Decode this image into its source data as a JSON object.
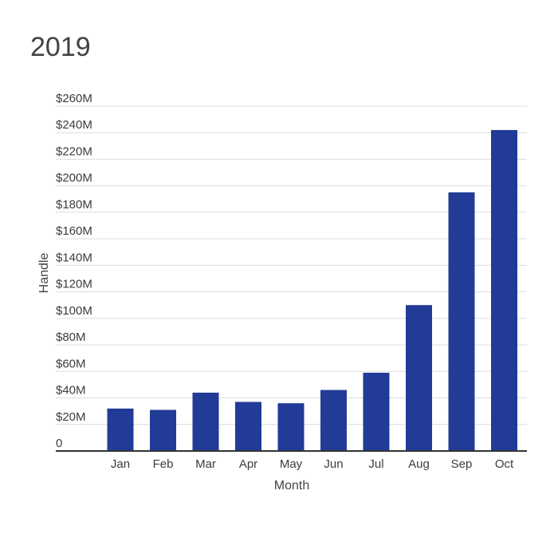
{
  "chart_data": {
    "type": "bar",
    "title": "2019",
    "xlabel": "Month",
    "ylabel": "Handle",
    "categories": [
      "Jan",
      "Feb",
      "Mar",
      "Apr",
      "May",
      "Jun",
      "Jul",
      "Aug",
      "Sep",
      "Oct"
    ],
    "values": [
      32,
      31,
      44,
      37,
      36,
      46,
      59,
      110,
      195,
      242
    ],
    "value_units": "$M",
    "ylim": [
      0,
      260
    ],
    "y_ticks": [
      0,
      20,
      40,
      60,
      80,
      100,
      120,
      140,
      160,
      180,
      200,
      220,
      240,
      260
    ],
    "y_tick_labels": [
      "0",
      "$20M",
      "$40M",
      "$60M",
      "$80M",
      "$100M",
      "$120M",
      "$140M",
      "$160M",
      "$180M",
      "$200M",
      "$220M",
      "$240M",
      "$260M"
    ],
    "grid": true,
    "legend": "none",
    "colors": {
      "bar": "#213b96",
      "grid": "#dcdcdc",
      "axis": "#333333"
    }
  }
}
